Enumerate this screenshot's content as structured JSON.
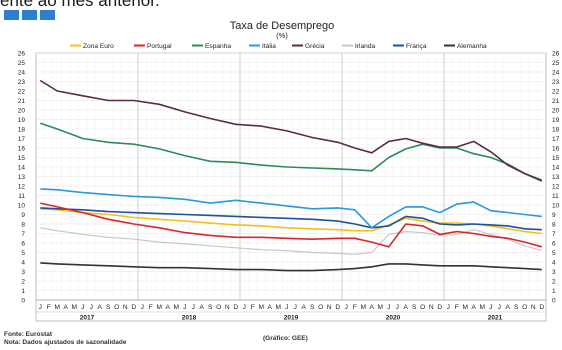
{
  "header": {
    "partial_text": "ente ao mês anterior."
  },
  "footer": {
    "source": "Fonte: Eurostat",
    "note": "Nota: Dados ajustados de sazonalidade",
    "graph_credit": "(Gráfico: GEE)"
  },
  "colors": {
    "Zona Euro": "#f2c21b",
    "Portugal": "#d8262e",
    "Espanha": "#2e8b57",
    "Itália": "#2a9ad8",
    "Grécia": "#5b2a4a",
    "Irlanda": "#c8c8c8",
    "França": "#1f4fa0",
    "Alemanha": "#333333"
  },
  "chart_data": {
    "type": "line",
    "title": "Taxa de Desemprego",
    "subtitle": "(%)",
    "ylim": [
      0,
      26
    ],
    "yticks": [
      0,
      1,
      2,
      3,
      4,
      5,
      6,
      7,
      8,
      9,
      10,
      11,
      12,
      13,
      14,
      15,
      16,
      17,
      18,
      19,
      20,
      21,
      22,
      23,
      24,
      25,
      26
    ],
    "month_labels": [
      "J",
      "F",
      "M",
      "A",
      "M",
      "J",
      "J",
      "A",
      "S",
      "O",
      "N",
      "D"
    ],
    "years": [
      "2017",
      "2018",
      "2019",
      "2020",
      "2021"
    ],
    "x": [
      "2017-01",
      "2017-03",
      "2017-06",
      "2017-09",
      "2017-12",
      "2018-03",
      "2018-06",
      "2018-09",
      "2018-12",
      "2019-03",
      "2019-06",
      "2019-09",
      "2019-12",
      "2020-02",
      "2020-04",
      "2020-06",
      "2020-08",
      "2020-10",
      "2020-12",
      "2021-02",
      "2021-04",
      "2021-06",
      "2021-08",
      "2021-10",
      "2021-12"
    ],
    "grid": true,
    "legend_position": "top",
    "series": [
      {
        "name": "Zona Euro",
        "values": [
          9.6,
          9.5,
          9.2,
          9.0,
          8.7,
          8.5,
          8.3,
          8.1,
          7.9,
          7.8,
          7.6,
          7.5,
          7.4,
          7.3,
          7.3,
          7.9,
          8.6,
          8.3,
          8.1,
          8.1,
          8.0,
          7.8,
          7.5,
          7.2,
          7.0
        ]
      },
      {
        "name": "Portugal",
        "values": [
          10.2,
          9.8,
          9.2,
          8.5,
          8.0,
          7.6,
          7.1,
          6.8,
          6.6,
          6.6,
          6.5,
          6.4,
          6.5,
          6.5,
          6.1,
          5.6,
          8.0,
          7.8,
          6.9,
          7.2,
          7.0,
          6.7,
          6.5,
          6.1,
          5.6
        ]
      },
      {
        "name": "Espanha",
        "values": [
          18.6,
          18.0,
          17.0,
          16.6,
          16.4,
          15.9,
          15.2,
          14.6,
          14.5,
          14.2,
          14.0,
          13.9,
          13.8,
          13.7,
          13.6,
          15.0,
          15.9,
          16.4,
          16.0,
          16.0,
          15.4,
          15.0,
          14.3,
          13.3,
          12.5
        ]
      },
      {
        "name": "Itália",
        "values": [
          11.7,
          11.6,
          11.3,
          11.1,
          10.9,
          10.8,
          10.6,
          10.2,
          10.5,
          10.2,
          9.9,
          9.6,
          9.7,
          9.5,
          7.6,
          8.8,
          9.8,
          9.8,
          9.2,
          10.1,
          10.3,
          9.4,
          9.2,
          9.0,
          8.8
        ]
      },
      {
        "name": "Grécia",
        "values": [
          23.1,
          22.0,
          21.5,
          21.0,
          21.0,
          20.6,
          19.8,
          19.1,
          18.5,
          18.3,
          17.8,
          17.1,
          16.6,
          16.0,
          15.5,
          16.7,
          17.0,
          16.5,
          16.1,
          16.1,
          16.7,
          15.6,
          14.2,
          13.3,
          12.6
        ]
      },
      {
        "name": "Irlanda",
        "values": [
          7.6,
          7.3,
          6.9,
          6.6,
          6.4,
          6.1,
          5.9,
          5.7,
          5.5,
          5.3,
          5.2,
          5.0,
          4.9,
          4.8,
          5.0,
          6.9,
          7.2,
          7.1,
          6.8,
          6.9,
          7.4,
          6.9,
          6.4,
          5.7,
          5.2
        ]
      },
      {
        "name": "França",
        "values": [
          9.7,
          9.6,
          9.5,
          9.3,
          9.2,
          9.1,
          9.0,
          8.9,
          8.8,
          8.7,
          8.6,
          8.5,
          8.3,
          8.0,
          7.6,
          7.8,
          8.8,
          8.6,
          8.0,
          7.9,
          8.0,
          7.9,
          7.8,
          7.5,
          7.4
        ]
      },
      {
        "name": "Alemanha",
        "values": [
          3.9,
          3.8,
          3.7,
          3.6,
          3.5,
          3.4,
          3.4,
          3.3,
          3.2,
          3.2,
          3.1,
          3.1,
          3.2,
          3.3,
          3.5,
          3.8,
          3.8,
          3.7,
          3.6,
          3.6,
          3.6,
          3.5,
          3.4,
          3.3,
          3.2
        ]
      }
    ]
  }
}
